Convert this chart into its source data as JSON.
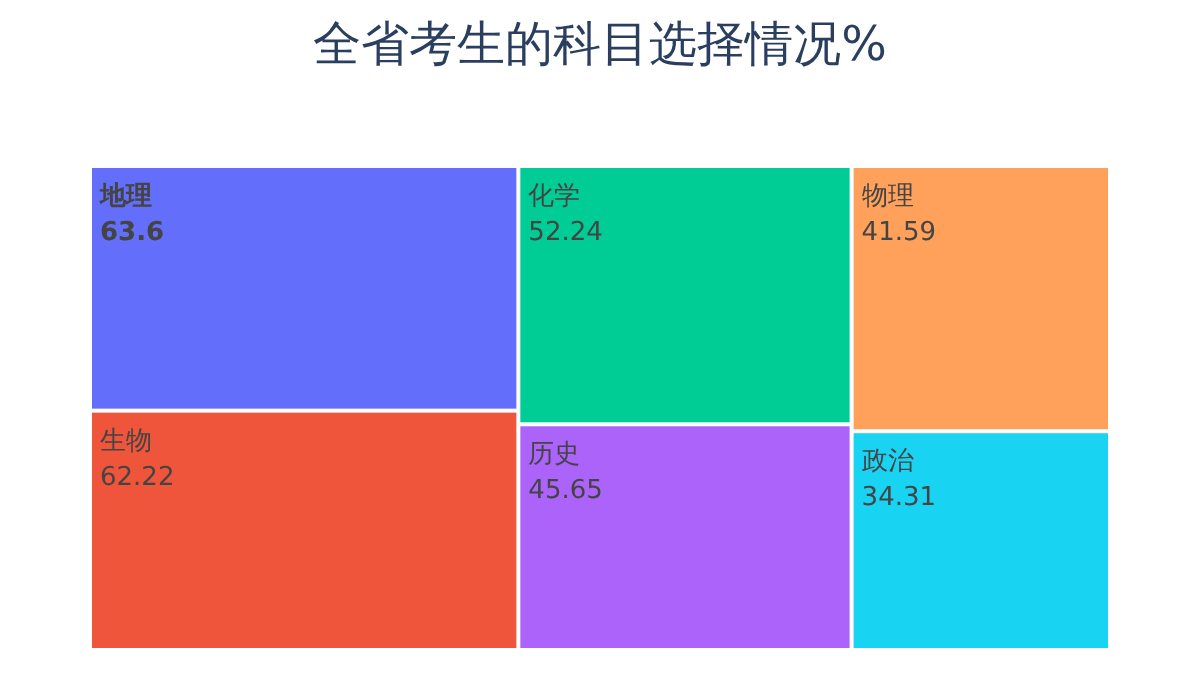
{
  "chart_data": {
    "type": "other",
    "title": "全省考生的科目选择情况%",
    "categories": [
      "地理",
      "生物",
      "化学",
      "历史",
      "物理",
      "政治"
    ],
    "values": [
      63.6,
      62.22,
      52.24,
      45.65,
      41.59,
      34.31
    ],
    "colors": [
      "#636efa",
      "#ef553b",
      "#00cc96",
      "#ab63fa",
      "#ffa15a",
      "#19d3f3"
    ],
    "data_labels": true
  }
}
